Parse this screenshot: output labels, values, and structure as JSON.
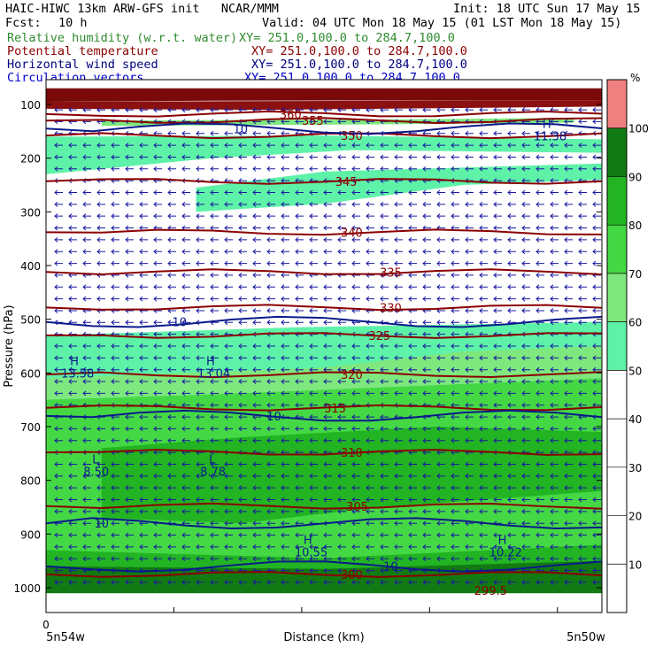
{
  "header": {
    "left_line1": "HAIC-HIWC 13km ARW-GFS init   NCAR/MMM",
    "init": "Init: 18 UTC Sun 17 May 15",
    "fcst_label": "Fcst:",
    "fcst_value": "10 h",
    "valid": "Valid: 04 UTC Mon 18 May 15 (01 LST Mon 18 May 15)",
    "fields": [
      {
        "name": "Relative humidity (w.r.t. water)",
        "xy": "XY= 251.0,100.0 to 284.7,100.0",
        "color": "#2e8b2e"
      },
      {
        "name": "Potential temperature",
        "xy": "XY= 251.0,100.0 to 284.7,100.0",
        "color": "#8b0000"
      },
      {
        "name": "Horizontal wind speed",
        "xy": "XY= 251.0,100.0 to 284.7,100.0",
        "color": "#000080"
      },
      {
        "name": "Circulation vectors",
        "xy": "XY= 251.0,100.0 to 284.7,100.0",
        "color": "#0000cc"
      }
    ]
  },
  "chart_data": {
    "type": "heatmap",
    "xlabel": "Distance (km)",
    "ylabel": "Pressure (hPa)",
    "x_tick_labels": [
      "0"
    ],
    "x_end_labels": [
      "5n54w",
      "5n50w"
    ],
    "y_ticks": [
      100,
      200,
      300,
      400,
      500,
      600,
      700,
      800,
      900,
      1000
    ],
    "y_range": [
      1000,
      70
    ],
    "colorbar": {
      "unit": "%",
      "ticks": [
        10,
        20,
        30,
        40,
        50,
        60,
        70,
        80,
        90,
        100
      ],
      "bins": [
        {
          "from": 0,
          "to": 50,
          "color": "#ffffff"
        },
        {
          "from": 50,
          "to": 60,
          "color": "#5ef2a8"
        },
        {
          "from": 60,
          "to": 70,
          "color": "#7ee87e"
        },
        {
          "from": 70,
          "to": 80,
          "color": "#45d845"
        },
        {
          "from": 80,
          "to": 90,
          "color": "#22b422"
        },
        {
          "from": 90,
          "to": 100,
          "color": "#127a12"
        },
        {
          "from": 100,
          "to": 110,
          "color": "#f08080"
        }
      ]
    },
    "theta_contours": [
      {
        "label": "300",
        "p": 975
      },
      {
        "label": "305",
        "p": 848
      },
      {
        "label": "310",
        "p": 748
      },
      {
        "label": "315",
        "p": 665
      },
      {
        "label": "320",
        "p": 603
      },
      {
        "label": "325",
        "p": 530
      },
      {
        "label": "330",
        "p": 478
      },
      {
        "label": "335",
        "p": 412
      },
      {
        "label": "340",
        "p": 338
      },
      {
        "label": "345",
        "p": 243
      },
      {
        "label": "350",
        "p": 158
      },
      {
        "label": "355",
        "p": 130
      },
      {
        "label": "360",
        "p": 118
      }
    ],
    "theta_extra_labels": [
      {
        "label": "299.5",
        "p": 1005
      }
    ],
    "wind_contours": [
      {
        "label": "10",
        "p": 505
      },
      {
        "label": "10",
        "p": 680
      },
      {
        "label": "10",
        "p": 880
      },
      {
        "label": "10",
        "p": 960
      },
      {
        "label": "10",
        "p": 145
      }
    ],
    "extrema": [
      {
        "kind": "H",
        "value": "13.58",
        "xfrac": 0.04,
        "p": 592
      },
      {
        "kind": "H",
        "value": "13.04",
        "xfrac": 0.285,
        "p": 592
      },
      {
        "kind": "L",
        "value": "8.50",
        "xfrac": 0.08,
        "p": 775
      },
      {
        "kind": "L",
        "value": "8.78",
        "xfrac": 0.29,
        "p": 775
      },
      {
        "kind": "H",
        "value": "10.55",
        "xfrac": 0.46,
        "p": 925
      },
      {
        "kind": "H",
        "value": "10.22",
        "xfrac": 0.81,
        "p": 925
      },
      {
        "kind": "H",
        "value": "11.38",
        "xfrac": 0.89,
        "p": 150
      }
    ]
  }
}
